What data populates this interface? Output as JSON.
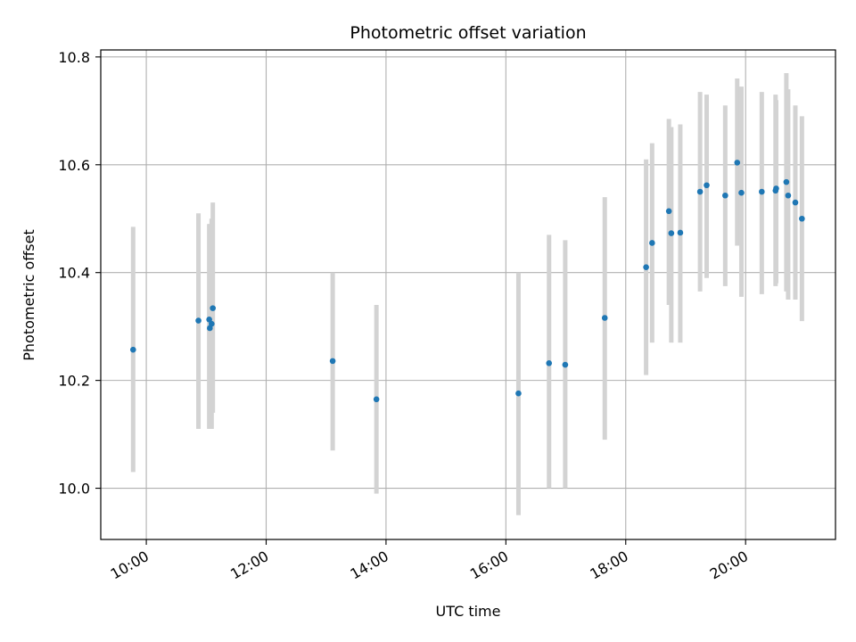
{
  "chart_data": {
    "type": "scatter",
    "title": "Photometric offset variation",
    "xlabel": "UTC time",
    "ylabel": "Photometric offset",
    "x_ticks": [
      "10:00",
      "12:00",
      "14:00",
      "16:00",
      "18:00",
      "20:00"
    ],
    "x_tick_hours": [
      10,
      12,
      14,
      16,
      18,
      20
    ],
    "xlim_hours": [
      9.24,
      21.5
    ],
    "y_ticks": [
      "10.0",
      "10.2",
      "10.4",
      "10.6",
      "10.8"
    ],
    "y_tick_values": [
      10.0,
      10.2,
      10.4,
      10.6,
      10.8
    ],
    "ylim": [
      9.905,
      10.813
    ],
    "grid": true,
    "point_color": "#1f77b4",
    "errorbar_color": "#d3d3d3",
    "series": [
      {
        "name": "offset",
        "points": [
          {
            "t": 9.78,
            "y": 10.257,
            "lo": 10.03,
            "hi": 10.485
          },
          {
            "t": 10.87,
            "y": 10.311,
            "lo": 10.11,
            "hi": 10.51
          },
          {
            "t": 11.05,
            "y": 10.313,
            "lo": 10.11,
            "hi": 10.49
          },
          {
            "t": 11.06,
            "y": 10.297,
            "lo": 10.11,
            "hi": 10.49
          },
          {
            "t": 11.09,
            "y": 10.305,
            "lo": 10.11,
            "hi": 10.5
          },
          {
            "t": 11.11,
            "y": 10.334,
            "lo": 10.14,
            "hi": 10.53
          },
          {
            "t": 13.11,
            "y": 10.236,
            "lo": 10.07,
            "hi": 10.4
          },
          {
            "t": 13.84,
            "y": 10.165,
            "lo": 9.99,
            "hi": 10.34
          },
          {
            "t": 16.21,
            "y": 10.176,
            "lo": 9.95,
            "hi": 10.4
          },
          {
            "t": 16.72,
            "y": 10.232,
            "lo": 10.0,
            "hi": 10.47
          },
          {
            "t": 16.99,
            "y": 10.229,
            "lo": 10.0,
            "hi": 10.46
          },
          {
            "t": 17.65,
            "y": 10.316,
            "lo": 10.09,
            "hi": 10.54
          },
          {
            "t": 18.34,
            "y": 10.41,
            "lo": 10.21,
            "hi": 10.61
          },
          {
            "t": 18.44,
            "y": 10.455,
            "lo": 10.27,
            "hi": 10.64
          },
          {
            "t": 18.72,
            "y": 10.514,
            "lo": 10.34,
            "hi": 10.685
          },
          {
            "t": 18.76,
            "y": 10.473,
            "lo": 10.27,
            "hi": 10.67
          },
          {
            "t": 18.91,
            "y": 10.474,
            "lo": 10.27,
            "hi": 10.675
          },
          {
            "t": 19.24,
            "y": 10.55,
            "lo": 10.365,
            "hi": 10.735
          },
          {
            "t": 19.35,
            "y": 10.562,
            "lo": 10.39,
            "hi": 10.73
          },
          {
            "t": 19.66,
            "y": 10.543,
            "lo": 10.375,
            "hi": 10.71
          },
          {
            "t": 19.86,
            "y": 10.604,
            "lo": 10.45,
            "hi": 10.76
          },
          {
            "t": 19.93,
            "y": 10.548,
            "lo": 10.355,
            "hi": 10.745
          },
          {
            "t": 20.27,
            "y": 10.55,
            "lo": 10.36,
            "hi": 10.735
          },
          {
            "t": 20.5,
            "y": 10.552,
            "lo": 10.375,
            "hi": 10.73
          },
          {
            "t": 20.51,
            "y": 10.556,
            "lo": 10.38,
            "hi": 10.72
          },
          {
            "t": 20.68,
            "y": 10.568,
            "lo": 10.365,
            "hi": 10.77
          },
          {
            "t": 20.71,
            "y": 10.543,
            "lo": 10.35,
            "hi": 10.74
          },
          {
            "t": 20.83,
            "y": 10.53,
            "lo": 10.35,
            "hi": 10.71
          },
          {
            "t": 20.94,
            "y": 10.5,
            "lo": 10.31,
            "hi": 10.69
          }
        ]
      }
    ]
  }
}
